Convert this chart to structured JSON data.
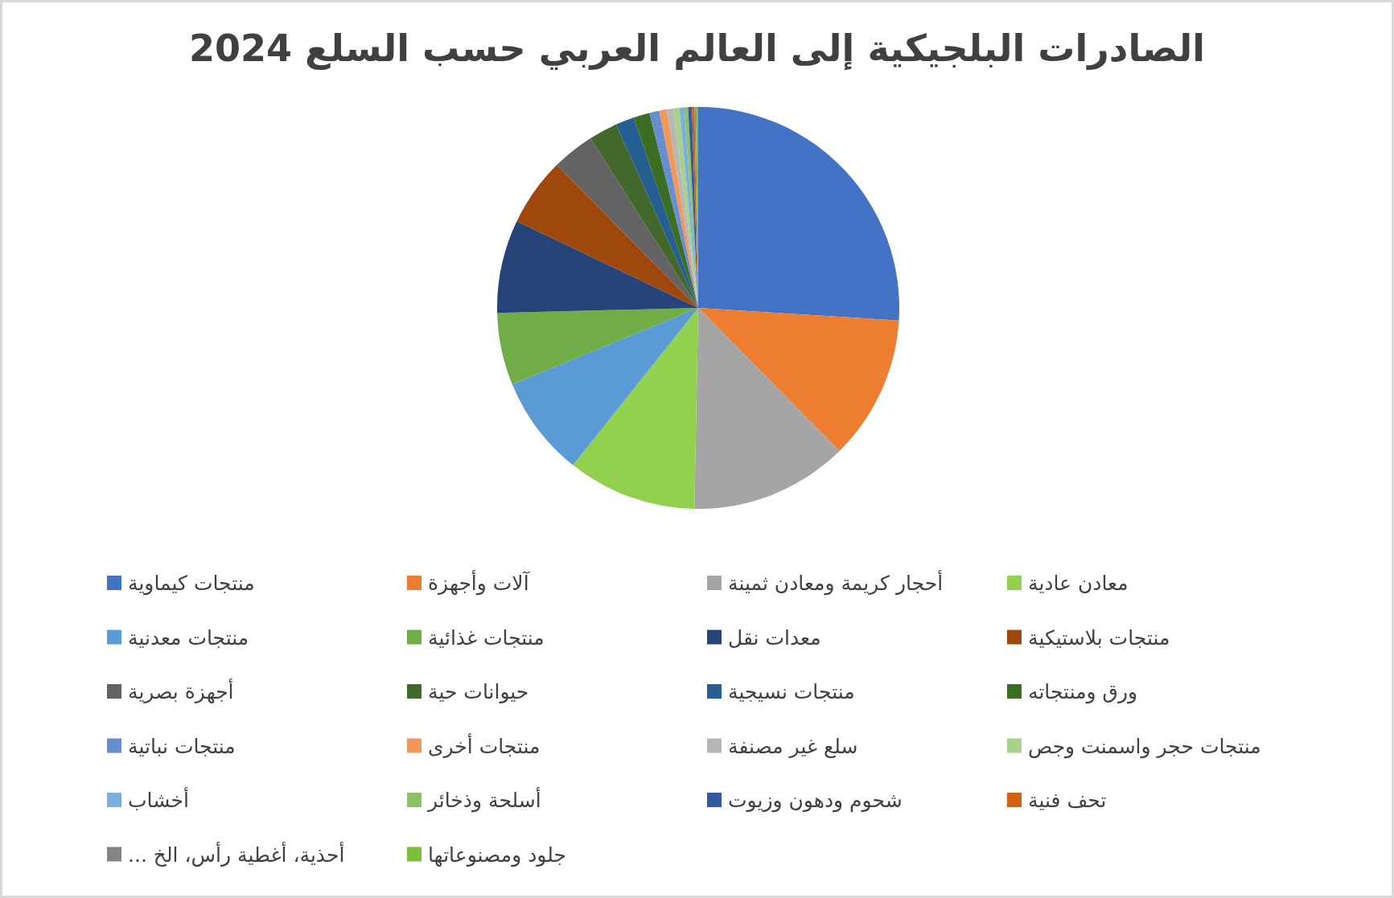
{
  "chart_data": {
    "type": "pie",
    "title": "الصادرات البلجيكية إلى العالم العربي حسب السلع 2024",
    "categories": [
      "منتجات كيماوية",
      "آلات وأجهزة",
      "أحجار كريمة ومعادن ثمينة",
      "معادن عادية",
      "منتجات معدنية",
      "منتجات غذائية",
      "معدات نقل",
      "منتجات بلاستيكية",
      "أجهزة بصرية",
      "حيوانات حية",
      "منتجات نسيجية",
      "ورق ومنتجاته",
      "منتجات نباتية",
      "منتجات أخرى",
      "سلع غير مصنفة",
      "منتجات حجر واسمنت وجص",
      "أخشاب",
      "أسلحة وذخائر",
      "شحوم ودهون وزيوت",
      "تحف فنية",
      "أحذية، أغطية رأس، الخ ...",
      "جلود ومصنوعاتها"
    ],
    "values": [
      26,
      11.6,
      12.7,
      10.4,
      8.1,
      5.8,
      7.5,
      5.5,
      3.4,
      2.3,
      1.5,
      1.3,
      0.8,
      0.6,
      0.5,
      0.5,
      0.4,
      0.3,
      0.3,
      0.2,
      0.1,
      0.2
    ],
    "colors": [
      "#4472c4",
      "#ed7d31",
      "#a5a5a5",
      "#92d050",
      "#5b9bd5",
      "#70ad47",
      "#264478",
      "#9e480e",
      "#636363",
      "#43682b",
      "#255e91",
      "#3b6e22",
      "#698ed0",
      "#f1975a",
      "#b7b7b7",
      "#a9d18e",
      "#7cafdd",
      "#8cc168",
      "#335aa1",
      "#d26012",
      "#848484",
      "#7cbf3c"
    ],
    "legend": "bottom"
  }
}
